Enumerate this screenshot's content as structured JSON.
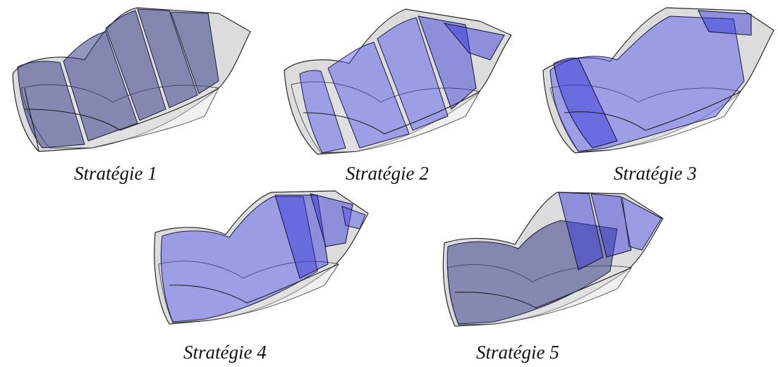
{
  "panels": [
    {
      "caption": "Stratégie 1"
    },
    {
      "caption": "Stratégie 2"
    },
    {
      "caption": "Stratégie 3"
    },
    {
      "caption": "Stratégie 4"
    },
    {
      "caption": "Stratégie 5"
    }
  ],
  "colors": {
    "shell": "#c9c9c9",
    "region_dark": "#3a3f8a",
    "region_blue": "#4d4df0",
    "region_blue_deep": "#2f2fd6"
  }
}
